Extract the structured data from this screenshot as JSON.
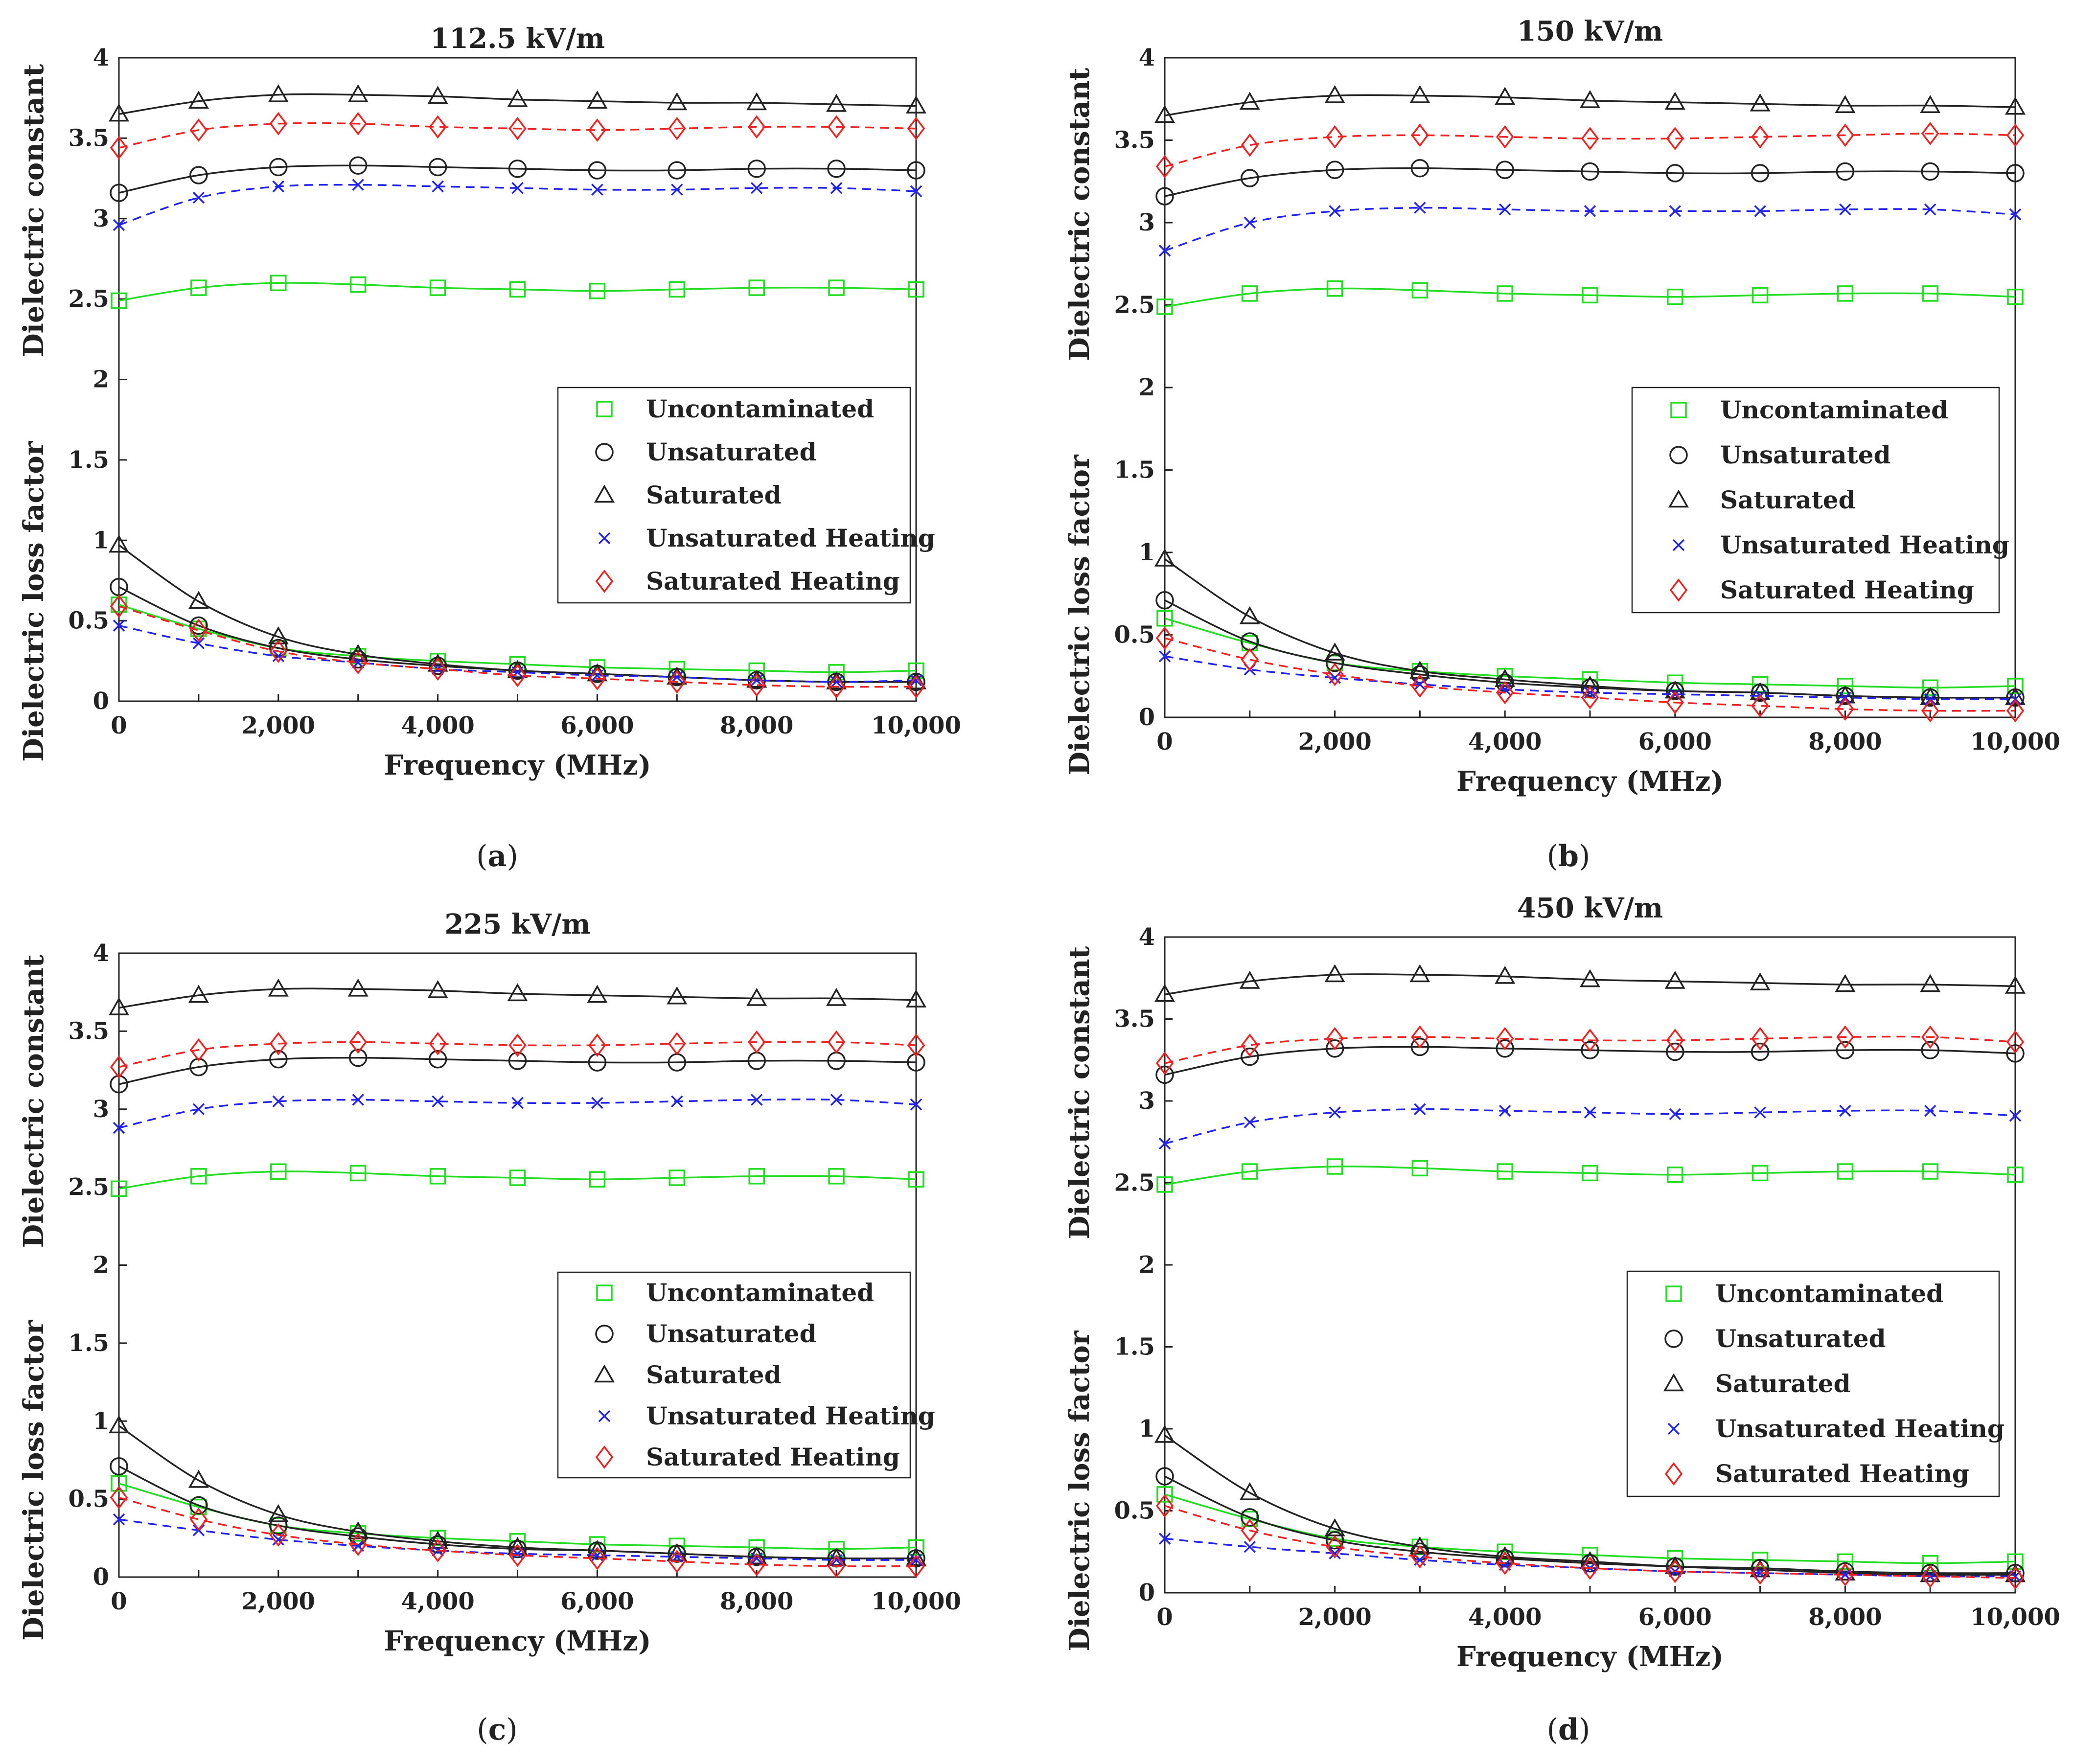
{
  "figure": {
    "x_axis_label": "Frequency (MHz)",
    "y_axis_label_upper": "Dielectric constant",
    "y_axis_label_lower": "Dielectric loss factor",
    "x_tick_labels": [
      "0",
      "2,000",
      "4,000",
      "6,000",
      "8,000",
      "10,000"
    ],
    "y_tick_labels": [
      "0",
      "0.5",
      "1",
      "1.5",
      "2",
      "2.5",
      "3",
      "3.5",
      "4"
    ]
  },
  "chart_data": [
    {
      "type": "line",
      "panel": "a",
      "title": "112.5 kV/m",
      "xlabel": "Frequency (MHz)",
      "ylabel_upper": "Dielectric constant",
      "ylabel_lower": "Dielectric loss factor",
      "xlim": [
        0,
        10000
      ],
      "ylim": [
        0,
        4
      ],
      "x": [
        0,
        1000,
        2000,
        3000,
        4000,
        5000,
        6000,
        7000,
        8000,
        9000,
        10000
      ],
      "series": [
        {
          "name": "Uncontaminated",
          "quantity": "dielectric constant",
          "color": "#22dd22",
          "marker": "square",
          "dashed": false,
          "values": [
            2.49,
            2.57,
            2.6,
            2.59,
            2.57,
            2.56,
            2.55,
            2.56,
            2.57,
            2.57,
            2.56
          ]
        },
        {
          "name": "Unsaturated",
          "quantity": "dielectric constant",
          "color": "#222222",
          "marker": "circle",
          "dashed": false,
          "values": [
            3.16,
            3.27,
            3.32,
            3.33,
            3.32,
            3.31,
            3.3,
            3.3,
            3.31,
            3.31,
            3.3
          ]
        },
        {
          "name": "Saturated",
          "quantity": "dielectric constant",
          "color": "#222222",
          "marker": "triangle",
          "dashed": false,
          "values": [
            3.65,
            3.73,
            3.77,
            3.77,
            3.76,
            3.74,
            3.73,
            3.72,
            3.72,
            3.71,
            3.7
          ]
        },
        {
          "name": "Unsaturated Heating",
          "quantity": "dielectric constant",
          "color": "#2222ee",
          "marker": "x",
          "dashed": true,
          "values": [
            2.96,
            3.13,
            3.2,
            3.21,
            3.2,
            3.19,
            3.18,
            3.18,
            3.19,
            3.19,
            3.17
          ]
        },
        {
          "name": "Saturated Heating",
          "quantity": "dielectric constant",
          "color": "#ee2222",
          "marker": "diamond",
          "dashed": true,
          "values": [
            3.44,
            3.55,
            3.59,
            3.59,
            3.57,
            3.56,
            3.55,
            3.56,
            3.57,
            3.57,
            3.56
          ]
        },
        {
          "name": "Uncontaminated",
          "quantity": "dielectric loss factor",
          "color": "#22dd22",
          "marker": "square",
          "dashed": false,
          "values": [
            0.6,
            0.45,
            0.33,
            0.28,
            0.25,
            0.23,
            0.21,
            0.2,
            0.19,
            0.18,
            0.19
          ]
        },
        {
          "name": "Unsaturated",
          "quantity": "dielectric loss factor",
          "color": "#222222",
          "marker": "circle",
          "dashed": false,
          "values": [
            0.71,
            0.47,
            0.33,
            0.26,
            0.22,
            0.19,
            0.17,
            0.15,
            0.13,
            0.12,
            0.12
          ]
        },
        {
          "name": "Saturated",
          "quantity": "dielectric loss factor",
          "color": "#222222",
          "marker": "triangle",
          "dashed": false,
          "values": [
            0.97,
            0.62,
            0.4,
            0.29,
            0.23,
            0.19,
            0.17,
            0.15,
            0.13,
            0.12,
            0.12
          ]
        },
        {
          "name": "Unsaturated Heating",
          "quantity": "dielectric loss factor",
          "color": "#2222ee",
          "marker": "x",
          "dashed": true,
          "values": [
            0.47,
            0.36,
            0.28,
            0.24,
            0.2,
            0.18,
            0.16,
            0.15,
            0.13,
            0.12,
            0.13
          ]
        },
        {
          "name": "Saturated Heating",
          "quantity": "dielectric loss factor",
          "color": "#ee2222",
          "marker": "diamond",
          "dashed": true,
          "values": [
            0.59,
            0.44,
            0.31,
            0.24,
            0.2,
            0.16,
            0.14,
            0.12,
            0.1,
            0.09,
            0.09
          ]
        }
      ]
    },
    {
      "type": "line",
      "panel": "b",
      "title": "150 kV/m",
      "xlabel": "Frequency (MHz)",
      "ylabel_upper": "Dielectric constant",
      "ylabel_lower": "Dielectric loss factor",
      "xlim": [
        0,
        10000
      ],
      "ylim": [
        0,
        4
      ],
      "x": [
        0,
        1000,
        2000,
        3000,
        4000,
        5000,
        6000,
        7000,
        8000,
        9000,
        10000
      ],
      "series": [
        {
          "name": "Uncontaminated",
          "quantity": "dielectric constant",
          "color": "#22dd22",
          "marker": "square",
          "dashed": false,
          "values": [
            2.49,
            2.57,
            2.6,
            2.59,
            2.57,
            2.56,
            2.55,
            2.56,
            2.57,
            2.57,
            2.55
          ]
        },
        {
          "name": "Unsaturated",
          "quantity": "dielectric constant",
          "color": "#222222",
          "marker": "circle",
          "dashed": false,
          "values": [
            3.16,
            3.27,
            3.32,
            3.33,
            3.32,
            3.31,
            3.3,
            3.3,
            3.31,
            3.31,
            3.3
          ]
        },
        {
          "name": "Saturated",
          "quantity": "dielectric constant",
          "color": "#222222",
          "marker": "triangle",
          "dashed": false,
          "values": [
            3.65,
            3.73,
            3.77,
            3.77,
            3.76,
            3.74,
            3.73,
            3.72,
            3.71,
            3.71,
            3.7
          ]
        },
        {
          "name": "Unsaturated Heating",
          "quantity": "dielectric constant",
          "color": "#2222ee",
          "marker": "x",
          "dashed": true,
          "values": [
            2.83,
            3.0,
            3.07,
            3.09,
            3.08,
            3.07,
            3.07,
            3.07,
            3.08,
            3.08,
            3.05
          ]
        },
        {
          "name": "Saturated Heating",
          "quantity": "dielectric constant",
          "color": "#ee2222",
          "marker": "diamond",
          "dashed": true,
          "values": [
            3.34,
            3.47,
            3.52,
            3.53,
            3.52,
            3.51,
            3.51,
            3.52,
            3.53,
            3.54,
            3.53
          ]
        },
        {
          "name": "Uncontaminated",
          "quantity": "dielectric loss factor",
          "color": "#22dd22",
          "marker": "square",
          "dashed": false,
          "values": [
            0.6,
            0.45,
            0.33,
            0.28,
            0.25,
            0.23,
            0.21,
            0.2,
            0.19,
            0.18,
            0.19
          ]
        },
        {
          "name": "Unsaturated",
          "quantity": "dielectric loss factor",
          "color": "#222222",
          "marker": "circle",
          "dashed": false,
          "values": [
            0.71,
            0.46,
            0.33,
            0.26,
            0.21,
            0.18,
            0.16,
            0.15,
            0.13,
            0.12,
            0.12
          ]
        },
        {
          "name": "Saturated",
          "quantity": "dielectric loss factor",
          "color": "#222222",
          "marker": "triangle",
          "dashed": false,
          "values": [
            0.96,
            0.61,
            0.39,
            0.28,
            0.23,
            0.19,
            0.16,
            0.15,
            0.13,
            0.12,
            0.12
          ]
        },
        {
          "name": "Unsaturated Heating",
          "quantity": "dielectric loss factor",
          "color": "#2222ee",
          "marker": "x",
          "dashed": true,
          "values": [
            0.37,
            0.29,
            0.24,
            0.2,
            0.17,
            0.15,
            0.14,
            0.13,
            0.12,
            0.11,
            0.11
          ]
        },
        {
          "name": "Saturated Heating",
          "quantity": "dielectric loss factor",
          "color": "#ee2222",
          "marker": "diamond",
          "dashed": true,
          "values": [
            0.48,
            0.35,
            0.26,
            0.19,
            0.15,
            0.12,
            0.09,
            0.07,
            0.05,
            0.04,
            0.04
          ]
        }
      ]
    },
    {
      "type": "line",
      "panel": "c",
      "title": "225 kV/m",
      "xlabel": "Frequency (MHz)",
      "ylabel_upper": "Dielectric constant",
      "ylabel_lower": "Dielectric loss factor",
      "xlim": [
        0,
        10000
      ],
      "ylim": [
        0,
        4
      ],
      "x": [
        0,
        1000,
        2000,
        3000,
        4000,
        5000,
        6000,
        7000,
        8000,
        9000,
        10000
      ],
      "series": [
        {
          "name": "Uncontaminated",
          "quantity": "dielectric constant",
          "color": "#22dd22",
          "marker": "square",
          "dashed": false,
          "values": [
            2.49,
            2.57,
            2.6,
            2.59,
            2.57,
            2.56,
            2.55,
            2.56,
            2.57,
            2.57,
            2.55
          ]
        },
        {
          "name": "Unsaturated",
          "quantity": "dielectric constant",
          "color": "#222222",
          "marker": "circle",
          "dashed": false,
          "values": [
            3.16,
            3.27,
            3.32,
            3.33,
            3.32,
            3.31,
            3.3,
            3.3,
            3.31,
            3.31,
            3.3
          ]
        },
        {
          "name": "Saturated",
          "quantity": "dielectric constant",
          "color": "#222222",
          "marker": "triangle",
          "dashed": false,
          "values": [
            3.65,
            3.73,
            3.77,
            3.77,
            3.76,
            3.74,
            3.73,
            3.72,
            3.71,
            3.71,
            3.7
          ]
        },
        {
          "name": "Unsaturated Heating",
          "quantity": "dielectric constant",
          "color": "#2222ee",
          "marker": "x",
          "dashed": true,
          "values": [
            2.88,
            3.0,
            3.05,
            3.06,
            3.05,
            3.04,
            3.04,
            3.05,
            3.06,
            3.06,
            3.03
          ]
        },
        {
          "name": "Saturated Heating",
          "quantity": "dielectric constant",
          "color": "#ee2222",
          "marker": "diamond",
          "dashed": true,
          "values": [
            3.27,
            3.38,
            3.42,
            3.43,
            3.42,
            3.41,
            3.41,
            3.42,
            3.43,
            3.43,
            3.41
          ]
        },
        {
          "name": "Uncontaminated",
          "quantity": "dielectric loss factor",
          "color": "#22dd22",
          "marker": "square",
          "dashed": false,
          "values": [
            0.6,
            0.45,
            0.33,
            0.28,
            0.25,
            0.23,
            0.21,
            0.2,
            0.19,
            0.18,
            0.19
          ]
        },
        {
          "name": "Unsaturated",
          "quantity": "dielectric loss factor",
          "color": "#222222",
          "marker": "circle",
          "dashed": false,
          "values": [
            0.71,
            0.46,
            0.33,
            0.26,
            0.21,
            0.18,
            0.17,
            0.15,
            0.13,
            0.12,
            0.12
          ]
        },
        {
          "name": "Saturated",
          "quantity": "dielectric loss factor",
          "color": "#222222",
          "marker": "triangle",
          "dashed": false,
          "values": [
            0.97,
            0.62,
            0.4,
            0.29,
            0.23,
            0.19,
            0.17,
            0.15,
            0.13,
            0.12,
            0.12
          ]
        },
        {
          "name": "Unsaturated Heating",
          "quantity": "dielectric loss factor",
          "color": "#2222ee",
          "marker": "x",
          "dashed": true,
          "values": [
            0.37,
            0.3,
            0.24,
            0.2,
            0.17,
            0.15,
            0.14,
            0.13,
            0.12,
            0.11,
            0.11
          ]
        },
        {
          "name": "Saturated Heating",
          "quantity": "dielectric loss factor",
          "color": "#ee2222",
          "marker": "diamond",
          "dashed": true,
          "values": [
            0.51,
            0.37,
            0.27,
            0.21,
            0.17,
            0.14,
            0.12,
            0.1,
            0.08,
            0.07,
            0.07
          ]
        }
      ]
    },
    {
      "type": "line",
      "panel": "d",
      "title": "450 kV/m",
      "xlabel": "Frequency (MHz)",
      "ylabel_upper": "Dielectric constant",
      "ylabel_lower": "Dielectric loss factor",
      "xlim": [
        0,
        10000
      ],
      "ylim": [
        0,
        4
      ],
      "x": [
        0,
        1000,
        2000,
        3000,
        4000,
        5000,
        6000,
        7000,
        8000,
        9000,
        10000
      ],
      "series": [
        {
          "name": "Uncontaminated",
          "quantity": "dielectric constant",
          "color": "#22dd22",
          "marker": "square",
          "dashed": false,
          "values": [
            2.49,
            2.57,
            2.6,
            2.59,
            2.57,
            2.56,
            2.55,
            2.56,
            2.57,
            2.57,
            2.55
          ]
        },
        {
          "name": "Unsaturated",
          "quantity": "dielectric constant",
          "color": "#222222",
          "marker": "circle",
          "dashed": false,
          "values": [
            3.16,
            3.27,
            3.32,
            3.33,
            3.32,
            3.31,
            3.3,
            3.3,
            3.31,
            3.31,
            3.29
          ]
        },
        {
          "name": "Saturated",
          "quantity": "dielectric constant",
          "color": "#222222",
          "marker": "triangle",
          "dashed": false,
          "values": [
            3.65,
            3.73,
            3.77,
            3.77,
            3.76,
            3.74,
            3.73,
            3.72,
            3.71,
            3.71,
            3.7
          ]
        },
        {
          "name": "Unsaturated Heating",
          "quantity": "dielectric constant",
          "color": "#2222ee",
          "marker": "x",
          "dashed": true,
          "values": [
            2.74,
            2.87,
            2.93,
            2.95,
            2.94,
            2.93,
            2.92,
            2.93,
            2.94,
            2.94,
            2.91
          ]
        },
        {
          "name": "Saturated Heating",
          "quantity": "dielectric constant",
          "color": "#ee2222",
          "marker": "diamond",
          "dashed": true,
          "values": [
            3.23,
            3.34,
            3.38,
            3.39,
            3.38,
            3.37,
            3.37,
            3.38,
            3.39,
            3.39,
            3.36
          ]
        },
        {
          "name": "Uncontaminated",
          "quantity": "dielectric loss factor",
          "color": "#22dd22",
          "marker": "square",
          "dashed": false,
          "values": [
            0.6,
            0.45,
            0.33,
            0.28,
            0.25,
            0.23,
            0.21,
            0.2,
            0.19,
            0.18,
            0.19
          ]
        },
        {
          "name": "Unsaturated",
          "quantity": "dielectric loss factor",
          "color": "#222222",
          "marker": "circle",
          "dashed": false,
          "values": [
            0.71,
            0.46,
            0.32,
            0.25,
            0.21,
            0.18,
            0.16,
            0.15,
            0.13,
            0.12,
            0.12
          ]
        },
        {
          "name": "Saturated",
          "quantity": "dielectric loss factor",
          "color": "#222222",
          "marker": "triangle",
          "dashed": false,
          "values": [
            0.96,
            0.61,
            0.39,
            0.28,
            0.22,
            0.19,
            0.16,
            0.14,
            0.12,
            0.11,
            0.11
          ]
        },
        {
          "name": "Unsaturated Heating",
          "quantity": "dielectric loss factor",
          "color": "#2222ee",
          "marker": "x",
          "dashed": true,
          "values": [
            0.33,
            0.28,
            0.24,
            0.2,
            0.17,
            0.15,
            0.13,
            0.12,
            0.11,
            0.1,
            0.1
          ]
        },
        {
          "name": "Saturated Heating",
          "quantity": "dielectric loss factor",
          "color": "#ee2222",
          "marker": "diamond",
          "dashed": true,
          "values": [
            0.53,
            0.38,
            0.28,
            0.22,
            0.18,
            0.15,
            0.13,
            0.12,
            0.11,
            0.1,
            0.09
          ]
        }
      ]
    }
  ]
}
